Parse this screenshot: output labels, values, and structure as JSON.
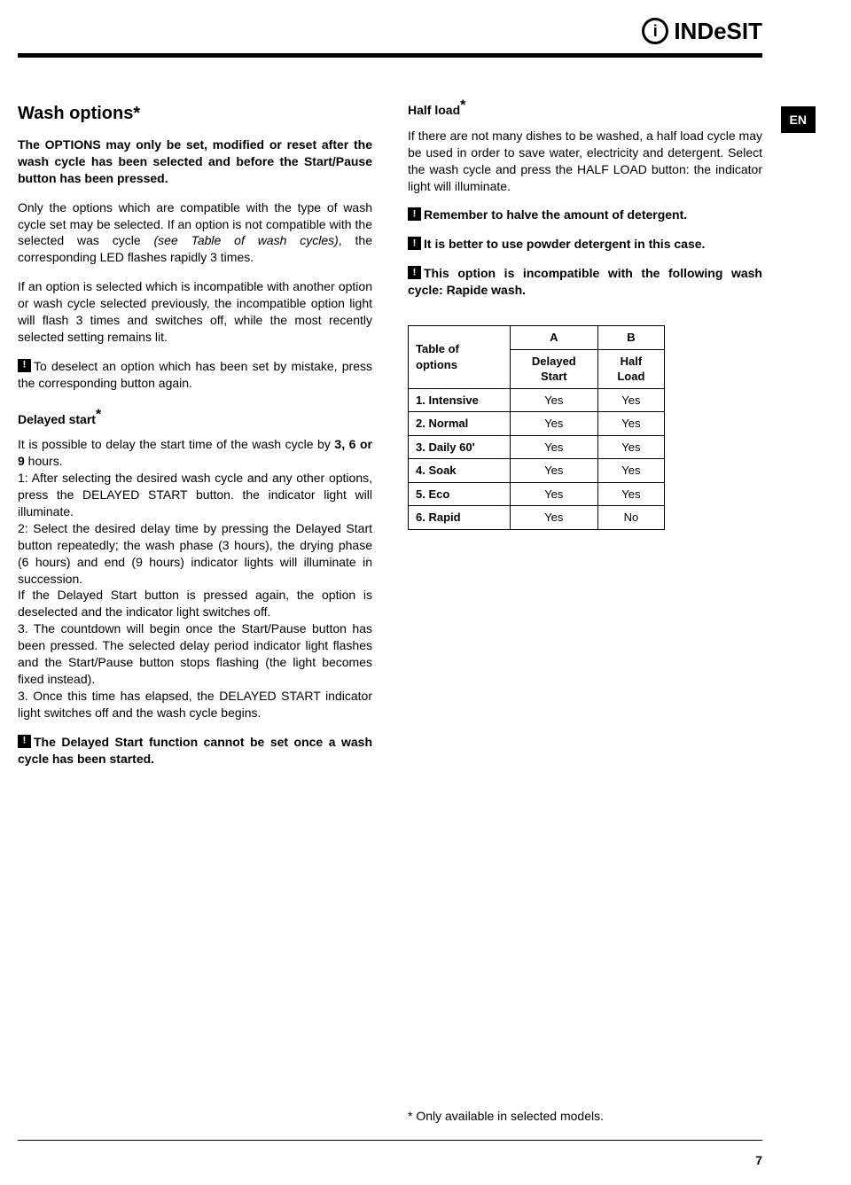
{
  "brand": "INDeSIT",
  "lang_tab": "EN",
  "page_number": "7",
  "left": {
    "h2": "Wash options*",
    "p1_bold": "The OPTIONS may only be set, modified or reset after the wash cycle has been selected and before the Start/Pause button has been pressed.",
    "p2a": "Only the options which are compatible with the type of wash cycle set may be selected. If an option is not compatible with the selected was cycle ",
    "p2_italic": "(see Table of wash cycles)",
    "p2b": ", the corresponding LED flashes rapidly 3 times.",
    "p3": "If an option is selected which is incompatible with another option or wash cycle selected previously, the incompatible option light will flash 3 times and switches off, while the most recently selected setting remains lit.",
    "p4": "To deselect an option which has been set by mistake, press the corresponding button again.",
    "h3_delayed": "Delayed start",
    "ds_p1a": "It is possible to delay the start time of the wash cycle by ",
    "ds_p1_bold": "3, 6 or 9",
    "ds_p1b": " hours.",
    "ds_p2": "1: After selecting the desired wash cycle and any other options, press the DELAYED START button. the indicator light will illuminate.",
    "ds_p3": "2: Select the desired delay time by pressing the Delayed Start button repeatedly; the wash phase (3 hours), the drying phase (6 hours) and end (9 hours) indicator lights will illuminate in succession.",
    "ds_p4": "If the Delayed Start button is pressed again, the option is deselected and the indicator light switches off.",
    "ds_p5": "3. The countdown will begin once the Start/Pause button has been pressed. The selected delay period indicator light flashes and the Start/Pause button stops flashing (the light becomes fixed instead).",
    "ds_p6": "3. Once this time has elapsed, the DELAYED START indicator light switches off and the wash cycle begins.",
    "ds_warn": "The Delayed Start function cannot be set once a wash cycle has been started."
  },
  "right": {
    "h3_half": "Half load",
    "hl_p1": "If there are not many dishes to be washed, a half load cycle may be used in order to save water, electricity and detergent. Select the wash cycle and press the HALF LOAD button: the indicator light will illuminate.",
    "hl_w1": "Remember to halve the amount of detergent.",
    "hl_w2": "It is better to use powder detergent in this case.",
    "hl_w3": "This option is incompatible with the following wash cycle: Rapide wash."
  },
  "table": {
    "header_label": "Table of options",
    "colA": "A",
    "colA_sub": "Delayed Start",
    "colB": "B",
    "colB_sub": "Half Load",
    "rows": [
      {
        "name": "1. Intensive",
        "a": "Yes",
        "b": "Yes"
      },
      {
        "name": "2. Normal",
        "a": "Yes",
        "b": "Yes"
      },
      {
        "name": "3. Daily 60'",
        "a": "Yes",
        "b": "Yes"
      },
      {
        "name": "4. Soak",
        "a": "Yes",
        "b": "Yes"
      },
      {
        "name": "5. Eco",
        "a": "Yes",
        "b": "Yes"
      },
      {
        "name": "6. Rapid",
        "a": "Yes",
        "b": "No"
      }
    ]
  },
  "footnote": "* Only available in selected models."
}
